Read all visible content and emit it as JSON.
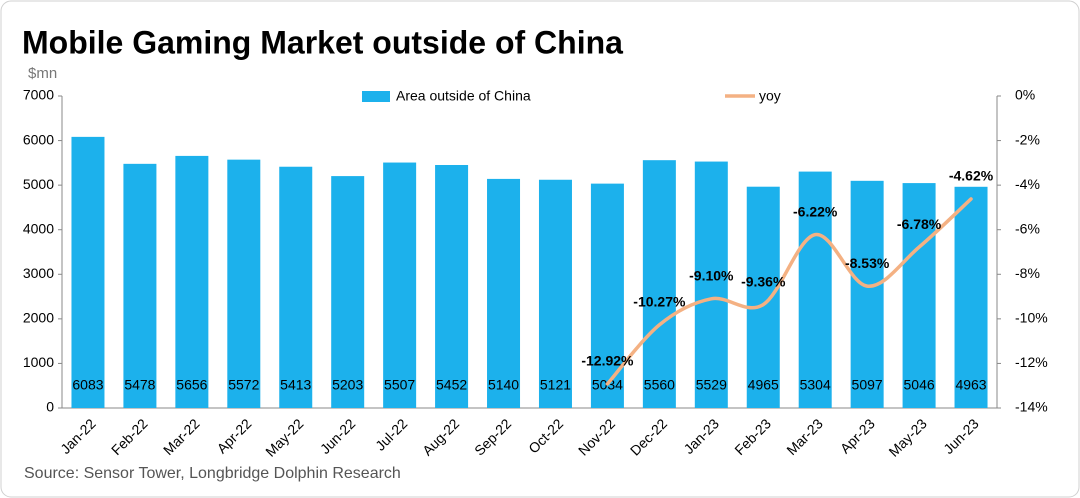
{
  "chart_data": {
    "type": "bar",
    "title": "Mobile Gaming Market outside of China",
    "y_label": "$mn",
    "source": "Source: Sensor Tower, Longbridge Dolphin Research",
    "categories": [
      "Jan-22",
      "Feb-22",
      "Mar-22",
      "Apr-22",
      "May-22",
      "Jun-22",
      "Jul-22",
      "Aug-22",
      "Sep-22",
      "Oct-22",
      "Nov-22",
      "Dec-22",
      "Jan-23",
      "Feb-23",
      "Mar-23",
      "Apr-23",
      "May-23",
      "Jun-23"
    ],
    "series": [
      {
        "name": "Area outside of China",
        "type": "bar",
        "color": "#1cb1ec",
        "values": [
          6083,
          5478,
          5656,
          5572,
          5413,
          5203,
          5507,
          5452,
          5140,
          5121,
          5034,
          5560,
          5529,
          4965,
          5304,
          5097,
          5046,
          4963
        ]
      },
      {
        "name": "yoy",
        "type": "line",
        "axis": "y2",
        "color": "#f4b183",
        "values": [
          null,
          null,
          null,
          null,
          null,
          null,
          null,
          null,
          null,
          null,
          -12.92,
          -10.27,
          -9.1,
          -9.36,
          -6.22,
          -8.53,
          -6.78,
          -4.62
        ],
        "value_labels": [
          null,
          null,
          null,
          null,
          null,
          null,
          null,
          null,
          null,
          null,
          "-12.92%",
          "-10.27%",
          "-9.10%",
          "-9.36%",
          "-6.22%",
          "-8.53%",
          "-6.78%",
          "-4.62%"
        ]
      }
    ],
    "ylim": [
      0,
      7000
    ],
    "yticks": [
      0,
      1000,
      2000,
      3000,
      4000,
      5000,
      6000,
      7000
    ],
    "y2lim": [
      -14,
      0
    ],
    "y2ticks": [
      {
        "value": -14,
        "label": "-14%"
      },
      {
        "value": -12,
        "label": "-12%"
      },
      {
        "value": -10,
        "label": "-10%"
      },
      {
        "value": -8,
        "label": "-8%"
      },
      {
        "value": -6,
        "label": "-6%"
      },
      {
        "value": -4,
        "label": "-4%"
      },
      {
        "value": -2,
        "label": "-2%"
      },
      {
        "value": 0,
        "label": "0%"
      }
    ],
    "legend": "top"
  }
}
